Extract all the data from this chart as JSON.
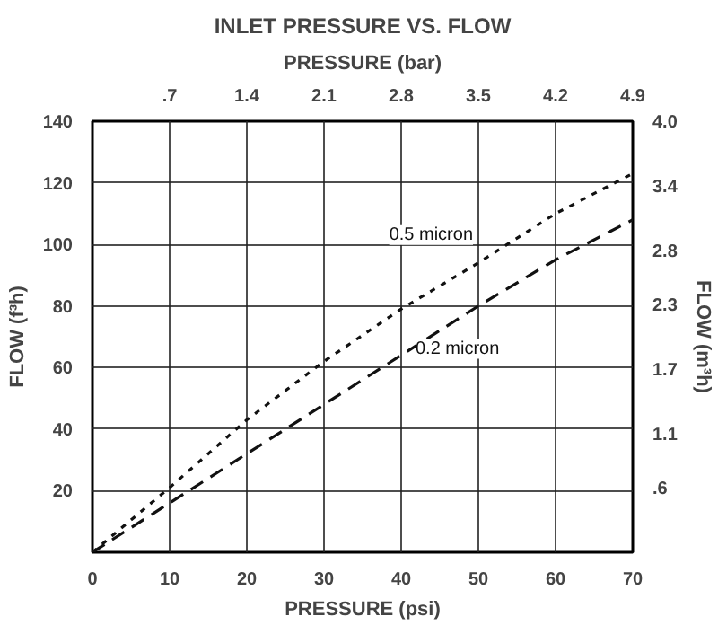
{
  "chart_data": {
    "type": "line",
    "title": "INLET PRESSURE VS. FLOW",
    "xlabel": "PRESSURE (psi)",
    "ylabel": "FLOW (f³h)",
    "y2label": "FLOW (m³h)",
    "x2label": "PRESSURE (bar)",
    "x": [
      0,
      10,
      20,
      30,
      40,
      50,
      60,
      70
    ],
    "series": [
      {
        "name": "0.5 micron",
        "color": "#111111",
        "line_style": "dotted",
        "values": [
          0,
          21,
          43,
          62,
          79,
          94,
          110,
          123
        ]
      },
      {
        "name": "0.2 micron",
        "color": "#111111",
        "line_style": "dashed",
        "values": [
          0,
          16,
          32,
          48,
          64,
          80,
          95,
          108
        ]
      }
    ],
    "xlim": [
      0,
      70
    ],
    "xticks": [
      0,
      10,
      20,
      30,
      40,
      50,
      60,
      70
    ],
    "ylim": [
      0,
      140
    ],
    "yticks": [
      20,
      40,
      60,
      80,
      100,
      120,
      140
    ],
    "x2lim": [
      0,
      4.9
    ],
    "x2ticks": [
      {
        "value": 0.7,
        "label": ".7"
      },
      1.4,
      2.1,
      2.8,
      3.5,
      4.2,
      4.9
    ],
    "y2lim": [
      0,
      4.0
    ],
    "y2ticks": [
      {
        "value": 0.6,
        "label": ".6"
      },
      1.1,
      1.7,
      2.3,
      2.8,
      3.4,
      {
        "value": 4.0,
        "label": "4.0"
      }
    ],
    "grid": true,
    "marker": "none"
  }
}
